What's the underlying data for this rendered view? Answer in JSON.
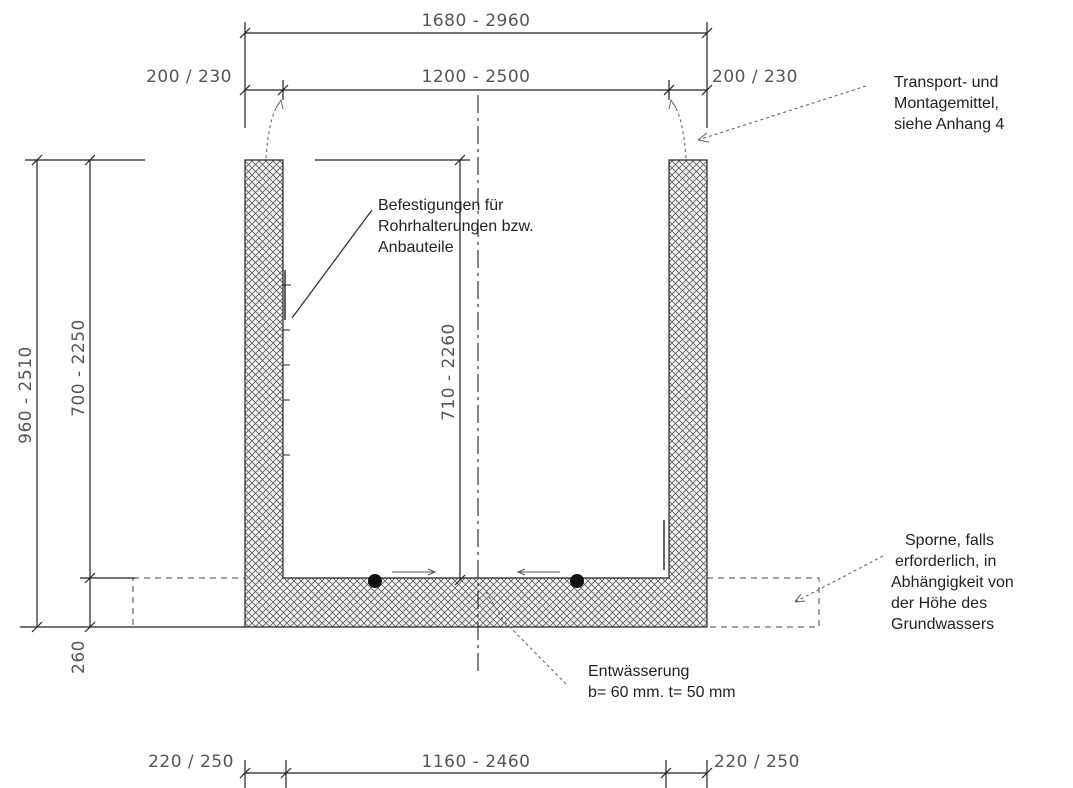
{
  "dimensions": {
    "top_overall": "1680 - 2960",
    "top_inner": "1200 - 2500",
    "top_left_wall": "200 / 230",
    "top_right_wall": "200 / 230",
    "height_total": "960 - 2510",
    "height_wall": "700 - 2250",
    "height_inner": "710 - 2260",
    "base_height": "260",
    "bottom_left_wall": "220 / 250",
    "bottom_inner": "1160 - 2460",
    "bottom_right_wall": "220 / 250"
  },
  "notes": {
    "fastenings": [
      "Befestigungen für",
      "Rohrhalterungen bzw.",
      "Anbauteile"
    ],
    "transport": [
      "Transport- und",
      "Montagemittel,",
      "siehe Anhang 4"
    ],
    "spurs": [
      "Sporne, falls",
      "erforderlich, in",
      "Abhängigkeit von",
      "der Höhe des",
      "Grundwassers"
    ],
    "drainage": [
      "Entwässerung",
      "b= 60 mm. t= 50 mm"
    ]
  }
}
